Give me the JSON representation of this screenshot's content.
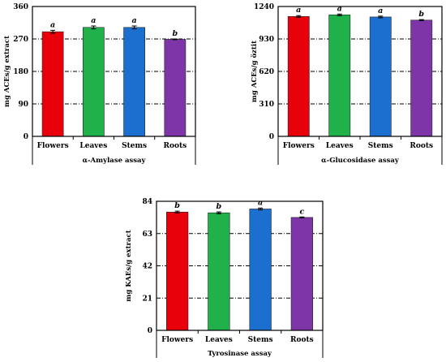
{
  "chart_data": [
    {
      "type": "bar",
      "xlabel": "α-Amylase assay",
      "ylabel": "mg ACEs/g extract",
      "ylim": [
        0,
        360
      ],
      "yticks": [
        "0",
        "90",
        "180",
        "270",
        "360"
      ],
      "grid": "dashed horizontal",
      "categories": [
        "Flowers",
        "Leaves",
        "Stems",
        "Roots"
      ],
      "values": [
        290,
        302,
        302,
        269
      ],
      "errors": [
        4,
        4,
        4,
        1
      ],
      "significance": [
        "a",
        "a",
        "a",
        "b"
      ],
      "colors": [
        "#e8000b",
        "#21b14b",
        "#1a6fcf",
        "#7d35a8"
      ]
    },
    {
      "type": "bar",
      "xlabel": "α-Glucosidase assay",
      "ylabel": "mg ACEs/g öztit",
      "ylim": [
        0,
        1240
      ],
      "yticks": [
        "0",
        "310",
        "620",
        "930",
        "1240"
      ],
      "grid": "dashed horizontal",
      "categories": [
        "Flowers",
        "Leaves",
        "Stems",
        "Roots"
      ],
      "values": [
        1145,
        1160,
        1140,
        1110
      ],
      "errors": [
        8,
        8,
        8,
        5
      ],
      "significance": [
        "a",
        "a",
        "a",
        "b"
      ],
      "colors": [
        "#e8000b",
        "#21b14b",
        "#1a6fcf",
        "#7d35a8"
      ]
    },
    {
      "type": "bar",
      "xlabel": "Tyrosinase assay",
      "ylabel": "mg KAEs/g extract",
      "ylim": [
        0,
        84
      ],
      "yticks": [
        "0",
        "21",
        "42",
        "63",
        "84"
      ],
      "grid": "dashed horizontal",
      "categories": [
        "Flowers",
        "Leaves",
        "Stems",
        "Roots"
      ],
      "values": [
        77,
        76.5,
        79,
        73.5
      ],
      "errors": [
        0.6,
        0.6,
        0.6,
        0.3
      ],
      "significance": [
        "b",
        "b",
        "a",
        "c"
      ],
      "colors": [
        "#e8000b",
        "#21b14b",
        "#1a6fcf",
        "#7d35a8"
      ]
    }
  ]
}
